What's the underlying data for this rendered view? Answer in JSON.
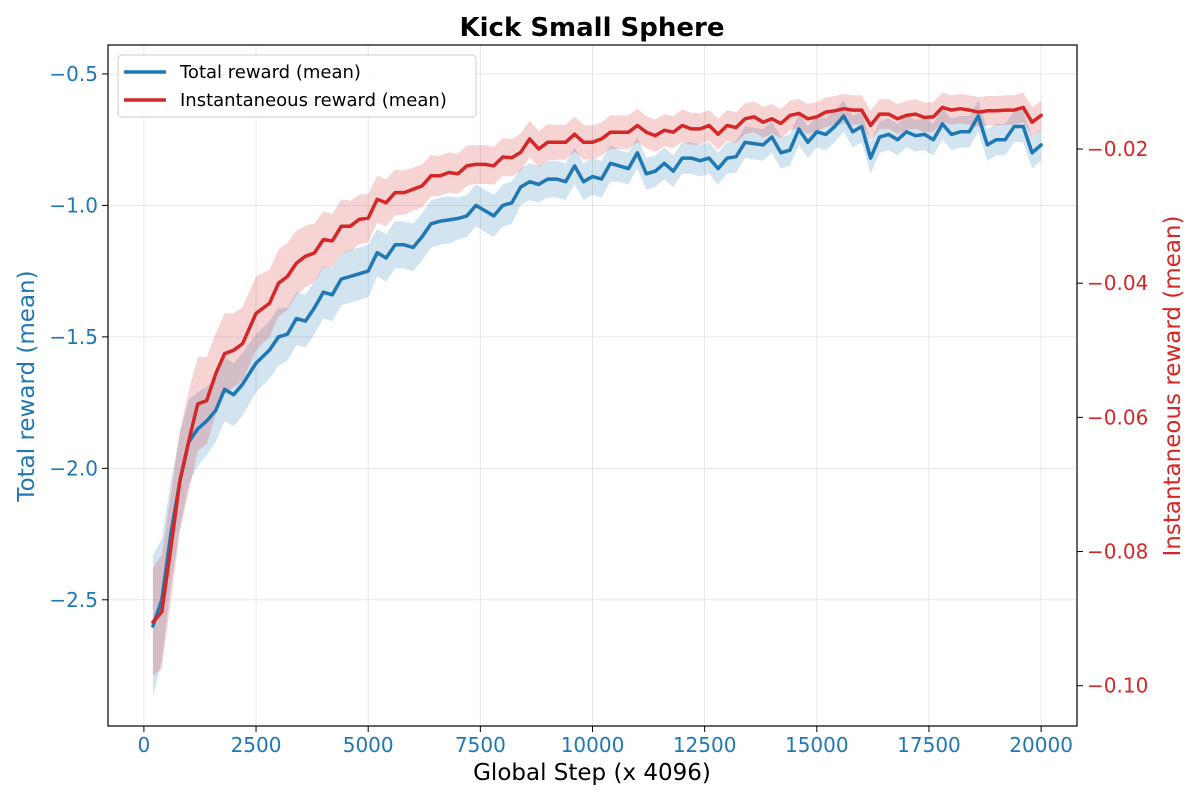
{
  "chart_data": {
    "type": "line",
    "title": "Kick Small Sphere",
    "xlabel": "Global Step (x 4096)",
    "xlim": [
      -800,
      20800
    ],
    "x_ticks": [
      "0",
      "2500",
      "5000",
      "7500",
      "10000",
      "12500",
      "15000",
      "17500",
      "20000"
    ],
    "grid": true,
    "legend_position": "top-left",
    "left_axis": {
      "label": "Total reward (mean)",
      "color": "#1f77b4",
      "ylim": [
        -2.98,
        -0.39
      ],
      "ticks": [
        "−2.5",
        "−2.0",
        "−1.5",
        "−1.0",
        "−0.5"
      ]
    },
    "right_axis": {
      "label": "Instantaneous reward (mean)",
      "color": "#d62728",
      "ylim": [
        -0.106,
        -0.0045
      ],
      "ticks": [
        "−0.10",
        "−0.08",
        "−0.06",
        "−0.04",
        "−0.02"
      ]
    },
    "series": [
      {
        "name": "Total reward (mean)",
        "axis": "left",
        "color": "#1f77b4",
        "x": [
          200,
          400,
          600,
          800,
          1000,
          1200,
          1400,
          1600,
          1800,
          2000,
          2200,
          2500,
          2800,
          3000,
          3200,
          3400,
          3600,
          3800,
          4000,
          4200,
          4400,
          4600,
          4800,
          5000,
          5200,
          5400,
          5600,
          5800,
          6000,
          6200,
          6400,
          6600,
          6800,
          7000,
          7200,
          7400,
          7600,
          7800,
          8000,
          8200,
          8400,
          8600,
          8800,
          9000,
          9200,
          9400,
          9600,
          9800,
          10000,
          10200,
          10400,
          10600,
          10800,
          11000,
          11200,
          11400,
          11600,
          11800,
          12000,
          12200,
          12400,
          12600,
          12800,
          13000,
          13200,
          13400,
          13600,
          13800,
          14000,
          14200,
          14400,
          14600,
          14800,
          15000,
          15200,
          15400,
          15600,
          15800,
          16000,
          16200,
          16400,
          16600,
          16800,
          17000,
          17200,
          17400,
          17600,
          17800,
          18000,
          18200,
          18400,
          18600,
          18800,
          19000,
          19200,
          19400,
          19600,
          19800,
          20000
        ],
        "y": [
          -2.6,
          -2.5,
          -2.25,
          -2.05,
          -1.9,
          -1.85,
          -1.82,
          -1.78,
          -1.7,
          -1.72,
          -1.68,
          -1.6,
          -1.55,
          -1.5,
          -1.49,
          -1.43,
          -1.44,
          -1.39,
          -1.33,
          -1.34,
          -1.28,
          -1.27,
          -1.26,
          -1.25,
          -1.18,
          -1.2,
          -1.15,
          -1.15,
          -1.16,
          -1.12,
          -1.07,
          -1.06,
          -1.055,
          -1.05,
          -1.04,
          -1.0,
          -1.02,
          -1.04,
          -1.0,
          -0.99,
          -0.93,
          -0.91,
          -0.92,
          -0.9,
          -0.9,
          -0.91,
          -0.85,
          -0.91,
          -0.89,
          -0.9,
          -0.84,
          -0.85,
          -0.86,
          -0.8,
          -0.88,
          -0.87,
          -0.84,
          -0.87,
          -0.82,
          -0.82,
          -0.83,
          -0.82,
          -0.86,
          -0.82,
          -0.815,
          -0.76,
          -0.765,
          -0.77,
          -0.74,
          -0.8,
          -0.79,
          -0.71,
          -0.76,
          -0.72,
          -0.73,
          -0.7,
          -0.66,
          -0.72,
          -0.7,
          -0.82,
          -0.74,
          -0.73,
          -0.75,
          -0.72,
          -0.735,
          -0.73,
          -0.75,
          -0.69,
          -0.73,
          -0.72,
          -0.72,
          -0.66,
          -0.77,
          -0.75,
          -0.75,
          -0.7,
          -0.7,
          -0.8,
          -0.77
        ],
        "band_halfwidth": [
          0.27,
          0.23,
          0.2,
          0.18,
          0.16,
          0.14,
          0.13,
          0.12,
          0.12,
          0.12,
          0.12,
          0.11,
          0.11,
          0.11,
          0.1,
          0.1,
          0.1,
          0.1,
          0.1,
          0.1,
          0.1,
          0.1,
          0.1,
          0.1,
          0.09,
          0.09,
          0.09,
          0.09,
          0.09,
          0.09,
          0.09,
          0.09,
          0.09,
          0.08,
          0.08,
          0.08,
          0.08,
          0.08,
          0.08,
          0.08,
          0.07,
          0.07,
          0.07,
          0.07,
          0.07,
          0.07,
          0.07,
          0.07,
          0.07,
          0.07,
          0.07,
          0.06,
          0.06,
          0.06,
          0.06,
          0.06,
          0.06,
          0.06,
          0.06,
          0.06,
          0.06,
          0.06,
          0.06,
          0.06,
          0.06,
          0.06,
          0.06,
          0.06,
          0.06,
          0.06,
          0.06,
          0.06,
          0.06,
          0.06,
          0.06,
          0.06,
          0.06,
          0.06,
          0.06,
          0.06,
          0.06,
          0.06,
          0.06,
          0.06,
          0.06,
          0.06,
          0.06,
          0.06,
          0.06,
          0.06,
          0.06,
          0.06,
          0.06,
          0.06,
          0.06,
          0.06,
          0.06,
          0.06,
          0.06
        ]
      },
      {
        "name": "Instantaneous reward (mean)",
        "axis": "right",
        "color": "#d62728",
        "x": [
          200,
          400,
          600,
          800,
          1000,
          1200,
          1400,
          1600,
          1800,
          2000,
          2200,
          2500,
          2800,
          3000,
          3200,
          3400,
          3600,
          3800,
          4000,
          4200,
          4400,
          4600,
          4800,
          5000,
          5200,
          5400,
          5600,
          5800,
          6000,
          6200,
          6400,
          6600,
          6800,
          7000,
          7200,
          7400,
          7600,
          7800,
          8000,
          8200,
          8400,
          8600,
          8800,
          9000,
          9200,
          9400,
          9600,
          9800,
          10000,
          10200,
          10400,
          10600,
          10800,
          11000,
          11200,
          11400,
          11600,
          11800,
          12000,
          12200,
          12400,
          12600,
          12800,
          13000,
          13200,
          13400,
          13600,
          13800,
          14000,
          14200,
          14400,
          14600,
          14800,
          15000,
          15200,
          15400,
          15600,
          15800,
          16000,
          16200,
          16400,
          16600,
          16800,
          17000,
          17200,
          17400,
          17600,
          17800,
          18000,
          18200,
          18400,
          18600,
          18800,
          19000,
          19200,
          19400,
          19600,
          19800,
          20000
        ],
        "y": [
          -0.0905,
          -0.089,
          -0.0795,
          -0.0695,
          -0.0635,
          -0.058,
          -0.0575,
          -0.0535,
          -0.0505,
          -0.05,
          -0.049,
          -0.0445,
          -0.043,
          -0.04,
          -0.039,
          -0.037,
          -0.036,
          -0.0355,
          -0.0335,
          -0.0337,
          -0.0315,
          -0.0315,
          -0.0305,
          -0.0303,
          -0.0275,
          -0.028,
          -0.0265,
          -0.0265,
          -0.026,
          -0.0255,
          -0.024,
          -0.024,
          -0.0235,
          -0.0237,
          -0.0225,
          -0.0223,
          -0.0223,
          -0.0225,
          -0.0212,
          -0.0213,
          -0.0205,
          -0.0185,
          -0.02,
          -0.019,
          -0.019,
          -0.019,
          -0.0178,
          -0.019,
          -0.019,
          -0.0185,
          -0.0175,
          -0.0175,
          -0.0175,
          -0.0165,
          -0.0175,
          -0.018,
          -0.0172,
          -0.0175,
          -0.0165,
          -0.017,
          -0.017,
          -0.0165,
          -0.0178,
          -0.0165,
          -0.0168,
          -0.0155,
          -0.0152,
          -0.016,
          -0.0155,
          -0.0162,
          -0.015,
          -0.0147,
          -0.0155,
          -0.0152,
          -0.0145,
          -0.0143,
          -0.014,
          -0.0142,
          -0.0142,
          -0.0165,
          -0.0148,
          -0.0148,
          -0.0155,
          -0.015,
          -0.0148,
          -0.0153,
          -0.0152,
          -0.0138,
          -0.0142,
          -0.014,
          -0.0142,
          -0.0145,
          -0.0143,
          -0.0143,
          -0.0142,
          -0.0142,
          -0.0138,
          -0.016,
          -0.015
        ],
        "band_halfwidth": [
          0.008,
          0.0085,
          0.008,
          0.0075,
          0.0075,
          0.007,
          0.0065,
          0.006,
          0.006,
          0.0055,
          0.0055,
          0.0055,
          0.005,
          0.005,
          0.005,
          0.0048,
          0.0046,
          0.0044,
          0.0042,
          0.004,
          0.004,
          0.0038,
          0.0037,
          0.0036,
          0.0035,
          0.0035,
          0.0034,
          0.0033,
          0.0032,
          0.0032,
          0.0031,
          0.003,
          0.003,
          0.003,
          0.003,
          0.0029,
          0.0029,
          0.0028,
          0.0028,
          0.0028,
          0.0028,
          0.0027,
          0.0027,
          0.0027,
          0.0026,
          0.0026,
          0.0026,
          0.0026,
          0.0025,
          0.0025,
          0.0025,
          0.0025,
          0.0025,
          0.0025,
          0.0024,
          0.0024,
          0.0024,
          0.0024,
          0.0024,
          0.0024,
          0.0023,
          0.0023,
          0.0023,
          0.0023,
          0.0023,
          0.0023,
          0.0023,
          0.0023,
          0.0022,
          0.0022,
          0.0022,
          0.0022,
          0.0022,
          0.0022,
          0.0022,
          0.0022,
          0.0022,
          0.0022,
          0.0022,
          0.0022,
          0.0022,
          0.0022,
          0.0022,
          0.0022,
          0.0022,
          0.0022,
          0.0022,
          0.0022,
          0.0022,
          0.0022,
          0.0022,
          0.0022,
          0.0022,
          0.0022,
          0.0022,
          0.0022,
          0.0022,
          0.0022,
          0.0022
        ]
      }
    ]
  }
}
